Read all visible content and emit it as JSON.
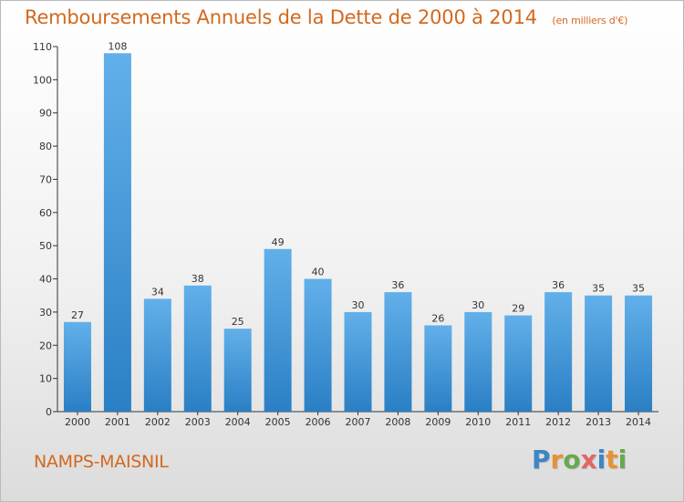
{
  "header": {
    "title": "Remboursements Annuels de la Dette de 2000 à 2014",
    "subtitle": "(en milliers d'€)"
  },
  "footer": {
    "commune": "NAMPS-MAISNIL",
    "logo_letters": [
      "P",
      "r",
      "o",
      "x",
      "i",
      "t",
      "i"
    ],
    "logo_colors": [
      "#3d85c6",
      "#e69138",
      "#6aa84f",
      "#e06666",
      "#3d85c6",
      "#e69138",
      "#6aa84f"
    ]
  },
  "colors": {
    "bar_top": "#62b0ea",
    "bar_bottom": "#2a7fc4",
    "title": "#d2691e"
  },
  "chart_data": {
    "type": "bar",
    "categories": [
      "2000",
      "2001",
      "2002",
      "2003",
      "2004",
      "2005",
      "2006",
      "2007",
      "2008",
      "2009",
      "2010",
      "2011",
      "2012",
      "2013",
      "2014"
    ],
    "values": [
      27,
      108,
      34,
      38,
      25,
      49,
      40,
      30,
      36,
      26,
      30,
      29,
      36,
      35,
      35
    ],
    "ylim": [
      0,
      110
    ],
    "yticks": [
      0,
      10,
      20,
      30,
      40,
      50,
      60,
      70,
      80,
      90,
      100,
      110
    ],
    "grid": false,
    "data_labels": true
  }
}
